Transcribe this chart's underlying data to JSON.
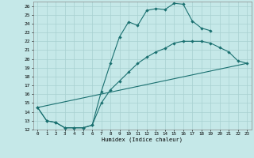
{
  "xlabel": "Humidex (Indice chaleur)",
  "bg_color": "#c5e8e8",
  "grid_color": "#a8d0d0",
  "line_color": "#1a7070",
  "xlim": [
    -0.5,
    23.5
  ],
  "ylim": [
    12,
    26.5
  ],
  "xticks": [
    0,
    1,
    2,
    3,
    4,
    5,
    6,
    7,
    8,
    9,
    10,
    11,
    12,
    13,
    14,
    15,
    16,
    17,
    18,
    19,
    20,
    21,
    22,
    23
  ],
  "yticks": [
    12,
    13,
    14,
    15,
    16,
    17,
    18,
    19,
    20,
    21,
    22,
    23,
    24,
    25,
    26
  ],
  "line1_x": [
    0,
    1,
    2,
    3,
    4,
    5,
    6,
    7,
    8,
    9,
    10,
    11,
    12,
    13,
    14,
    15,
    16,
    17,
    18,
    19
  ],
  "line1_y": [
    14.5,
    13.0,
    12.8,
    12.2,
    12.2,
    12.2,
    12.5,
    16.3,
    19.5,
    22.5,
    24.2,
    23.8,
    25.5,
    25.7,
    25.6,
    26.3,
    26.2,
    24.3,
    23.5,
    23.2
  ],
  "line2_x": [
    0,
    1,
    2,
    3,
    4,
    5,
    6,
    7,
    8,
    9,
    10,
    11,
    12,
    13,
    14,
    15,
    16,
    17,
    18,
    19,
    20,
    21,
    22,
    23
  ],
  "line2_y": [
    14.5,
    13.0,
    12.8,
    12.2,
    12.2,
    12.2,
    12.5,
    15.0,
    16.5,
    17.5,
    18.5,
    19.5,
    20.2,
    20.8,
    21.2,
    21.8,
    22.0,
    22.0,
    22.0,
    21.8,
    21.3,
    20.8,
    19.8,
    19.5
  ],
  "line3_x": [
    0,
    23
  ],
  "line3_y": [
    14.5,
    19.5
  ]
}
